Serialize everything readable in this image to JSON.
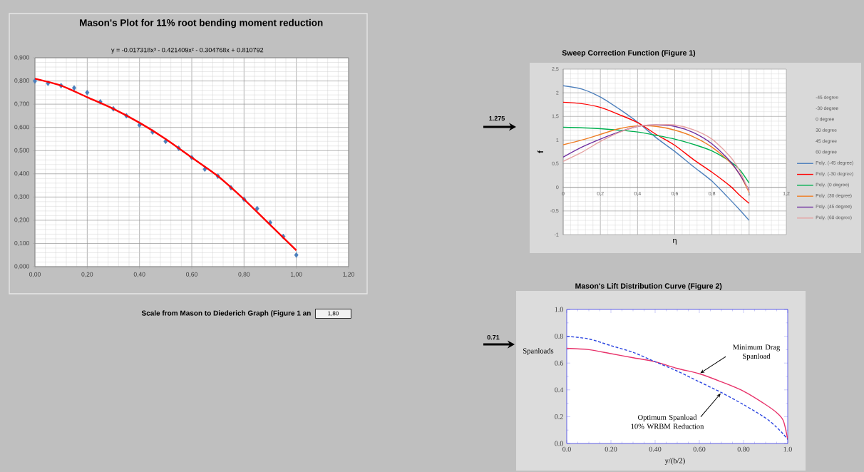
{
  "chart_data": [
    {
      "type": "scatter",
      "title": "Mason's Plot for 11% root bending moment reduction",
      "annotations": [
        "y = -0.017318x³ - 0.421409x² - 0.304768x + 0.810792",
        "Scale from Mason to Diederich Graph (Figure 1 an",
        "1,80"
      ],
      "marker": "diamond",
      "grid": true,
      "xlim": [
        0,
        1.2
      ],
      "xticks": [
        {
          "value": 0,
          "label": "0,00"
        },
        {
          "value": 0.2,
          "label": "0,20"
        },
        {
          "value": 0.4,
          "label": "0,40"
        },
        {
          "value": 0.6,
          "label": "0,60"
        },
        {
          "value": 0.8,
          "label": "0,80"
        },
        {
          "value": 1,
          "label": "1,00"
        },
        {
          "value": 1.2,
          "label": "1,20"
        }
      ],
      "ylim": [
        0,
        0.9
      ],
      "yticks": [
        {
          "value": 0,
          "label": "0,000"
        },
        {
          "value": 0.1,
          "label": "0,100"
        },
        {
          "value": 0.2,
          "label": "0,200"
        },
        {
          "value": 0.3,
          "label": "0,300"
        },
        {
          "value": 0.4,
          "label": "0,400"
        },
        {
          "value": 0.5,
          "label": "0,500"
        },
        {
          "value": 0.6,
          "label": "0,600"
        },
        {
          "value": 0.7,
          "label": "0,700"
        },
        {
          "value": 0.8,
          "label": "0,800"
        },
        {
          "value": 0.9,
          "label": "0,900"
        }
      ],
      "series": [
        {
          "type": "scatter",
          "color": "#4a7ebb",
          "x": [
            0,
            0.05,
            0.1,
            0.15,
            0.2,
            0.25,
            0.3,
            0.35,
            0.4,
            0.45,
            0.5,
            0.55,
            0.6,
            0.65,
            0.7,
            0.75,
            0.8,
            0.85,
            0.9,
            0.95,
            1
          ],
          "values": [
            0.8,
            0.79,
            0.78,
            0.77,
            0.75,
            0.71,
            0.68,
            0.65,
            0.61,
            0.58,
            0.54,
            0.51,
            0.47,
            0.42,
            0.39,
            0.34,
            0.29,
            0.25,
            0.19,
            0.13,
            0.05
          ]
        },
        {
          "type": "line",
          "marker": "none",
          "color": "#ff0000",
          "x": [
            0,
            0.1,
            0.2,
            0.3,
            0.4,
            0.5,
            0.6,
            0.7,
            0.8,
            0.9,
            1
          ],
          "values": [
            0.81,
            0.78,
            0.73,
            0.68,
            0.62,
            0.55,
            0.47,
            0.39,
            0.29,
            0.18,
            0.07
          ]
        }
      ]
    },
    {
      "type": "line",
      "title": "Sweep Correction Function (Figure 1)",
      "xlabel": "η",
      "ylabel": "f",
      "grid": true,
      "legend": "right",
      "annotations": [
        "-45 degree",
        "-30 degree",
        "0 degree",
        "30 degree",
        "45 degree",
        "60 degree",
        "1.275"
      ],
      "xlim": [
        0,
        1.2
      ],
      "xticks": [
        0,
        {
          "value": 0.2,
          "label": "0,2"
        },
        {
          "value": 0.4,
          "label": "0,4"
        },
        {
          "value": 0.6,
          "label": "0,6"
        },
        {
          "value": 0.8,
          "label": "0,8"
        },
        1,
        {
          "value": 1.2,
          "label": "1,2"
        }
      ],
      "ylim": [
        -1,
        2.5
      ],
      "yticks": [
        -1,
        {
          "value": -0.5,
          "label": "-0,5"
        },
        0,
        {
          "value": 0.5,
          "label": "0,5"
        },
        1,
        {
          "value": 1.5,
          "label": "1,5"
        },
        2,
        {
          "value": 2.5,
          "label": "2,5"
        }
      ],
      "x": [
        0,
        0.1,
        0.2,
        0.3,
        0.4,
        0.5,
        0.6,
        0.7,
        0.8,
        0.9,
        0.95,
        1
      ],
      "series": [
        {
          "name": "Poly. (-45 degree)",
          "color": "#4f81bd",
          "values": [
            2.15,
            2.08,
            1.91,
            1.66,
            1.38,
            1.05,
            0.76,
            0.44,
            0.13,
            -0.27,
            -0.48,
            -0.7
          ]
        },
        {
          "name": "Poly. (-30 degree)",
          "color": "#ff0000",
          "values": [
            1.8,
            1.77,
            1.69,
            1.54,
            1.37,
            1.12,
            0.89,
            0.59,
            0.32,
            0.02,
            -0.17,
            -0.34
          ]
        },
        {
          "name": "Poly. (0 degree)",
          "color": "#00b050",
          "values": [
            1.27,
            1.26,
            1.24,
            1.21,
            1.17,
            1.1,
            1.02,
            0.91,
            0.77,
            0.54,
            0.37,
            0.09
          ]
        },
        {
          "name": "Poly. (30 degree)",
          "color": "#f07f26",
          "values": [
            0.9,
            1.0,
            1.12,
            1.24,
            1.3,
            1.29,
            1.21,
            1.07,
            0.85,
            0.52,
            0.27,
            -0.11
          ]
        },
        {
          "name": "Poly. (45 degree)",
          "color": "#7030a0",
          "values": [
            0.64,
            0.85,
            1.02,
            1.17,
            1.29,
            1.32,
            1.29,
            1.16,
            0.92,
            0.54,
            0.27,
            -0.06
          ]
        },
        {
          "name": "Poly. (60 degree)",
          "color": "#e6a3a3",
          "values": [
            0.55,
            0.74,
            0.97,
            1.16,
            1.29,
            1.32,
            1.32,
            1.22,
            1.02,
            0.64,
            0.34,
            -0.09
          ]
        }
      ]
    },
    {
      "type": "line",
      "title": "Mason's Lift Distribution Curve (Figure 2)",
      "xlabel": "y/(b/2)",
      "ylabel": "Spanloads",
      "annotations": [
        "0.71",
        {
          "text": "Minimum Drag Spanload",
          "x": 0.6,
          "y": 0.52
        },
        {
          "text": "Optimum Spanload 10% WRBM Reduction",
          "x": 0.7,
          "y": 0.38
        }
      ],
      "xlim": [
        0,
        1
      ],
      "xticks": [
        {
          "value": 0,
          "label": "0.0"
        },
        {
          "value": 0.2,
          "label": "0.20"
        },
        {
          "value": 0.4,
          "label": "0.40"
        },
        {
          "value": 0.6,
          "label": "0.60"
        },
        {
          "value": 0.8,
          "label": "0.80"
        },
        {
          "value": 1,
          "label": "1.0"
        }
      ],
      "ylim": [
        0,
        1
      ],
      "yticks": [
        {
          "value": 0,
          "label": "0.0"
        },
        0.2,
        0.4,
        0.6,
        0.8,
        {
          "value": 1,
          "label": "1.0"
        }
      ],
      "series": [
        {
          "color": "#e8336b",
          "line_style": "solid",
          "x": [
            0,
            0.1,
            0.2,
            0.3,
            0.4,
            0.5,
            0.6,
            0.7,
            0.8,
            0.9,
            0.95,
            0.98,
            1
          ],
          "values": [
            0.71,
            0.7,
            0.67,
            0.64,
            0.61,
            0.56,
            0.52,
            0.46,
            0.39,
            0.29,
            0.23,
            0.17,
            0.03
          ]
        },
        {
          "color": "#2a44e0",
          "line_style": "dashed",
          "x": [
            0,
            0.1,
            0.2,
            0.3,
            0.4,
            0.5,
            0.6,
            0.7,
            0.8,
            0.9,
            0.95,
            0.98,
            1
          ],
          "values": [
            0.8,
            0.78,
            0.73,
            0.68,
            0.61,
            0.54,
            0.46,
            0.38,
            0.29,
            0.19,
            0.12,
            0.07,
            0.03
          ]
        }
      ]
    }
  ]
}
